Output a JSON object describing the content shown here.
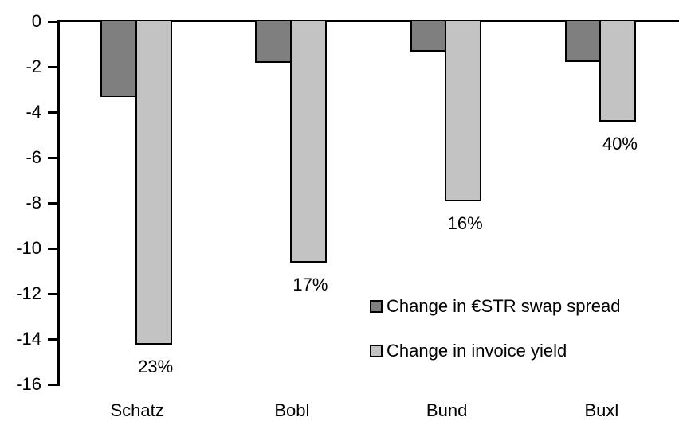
{
  "chart_data": {
    "type": "bar",
    "title": "",
    "xlabel": "",
    "ylabel": "",
    "categories": [
      "Schatz",
      "Bobl",
      "Bund",
      "Buxl"
    ],
    "series": [
      {
        "name": "Change in €STR swap spread",
        "color": "#7f7f7f",
        "values": [
          -3.3,
          -1.8,
          -1.3,
          -1.75
        ]
      },
      {
        "name": "Change in invoice yield",
        "color": "#c3c3c3",
        "values": [
          -14.2,
          -10.6,
          -7.9,
          -4.4
        ]
      }
    ],
    "bar_labels": {
      "series": "Change in invoice yield",
      "values": [
        "23%",
        "17%",
        "16%",
        "40%"
      ]
    },
    "yticks": [
      0,
      -2,
      -4,
      -6,
      -8,
      -10,
      -12,
      -14,
      -16
    ],
    "ytick_labels": [
      "0",
      "-2",
      "-4",
      "-6",
      "-8",
      "-10",
      "-12",
      "-14",
      "-16"
    ],
    "ylim": [
      -16,
      0
    ],
    "grid": false,
    "legend_position": "inside-right"
  },
  "colors": {
    "axis": "#000000",
    "bar_border": "#000000",
    "background": "#ffffff",
    "text": "#000000"
  }
}
